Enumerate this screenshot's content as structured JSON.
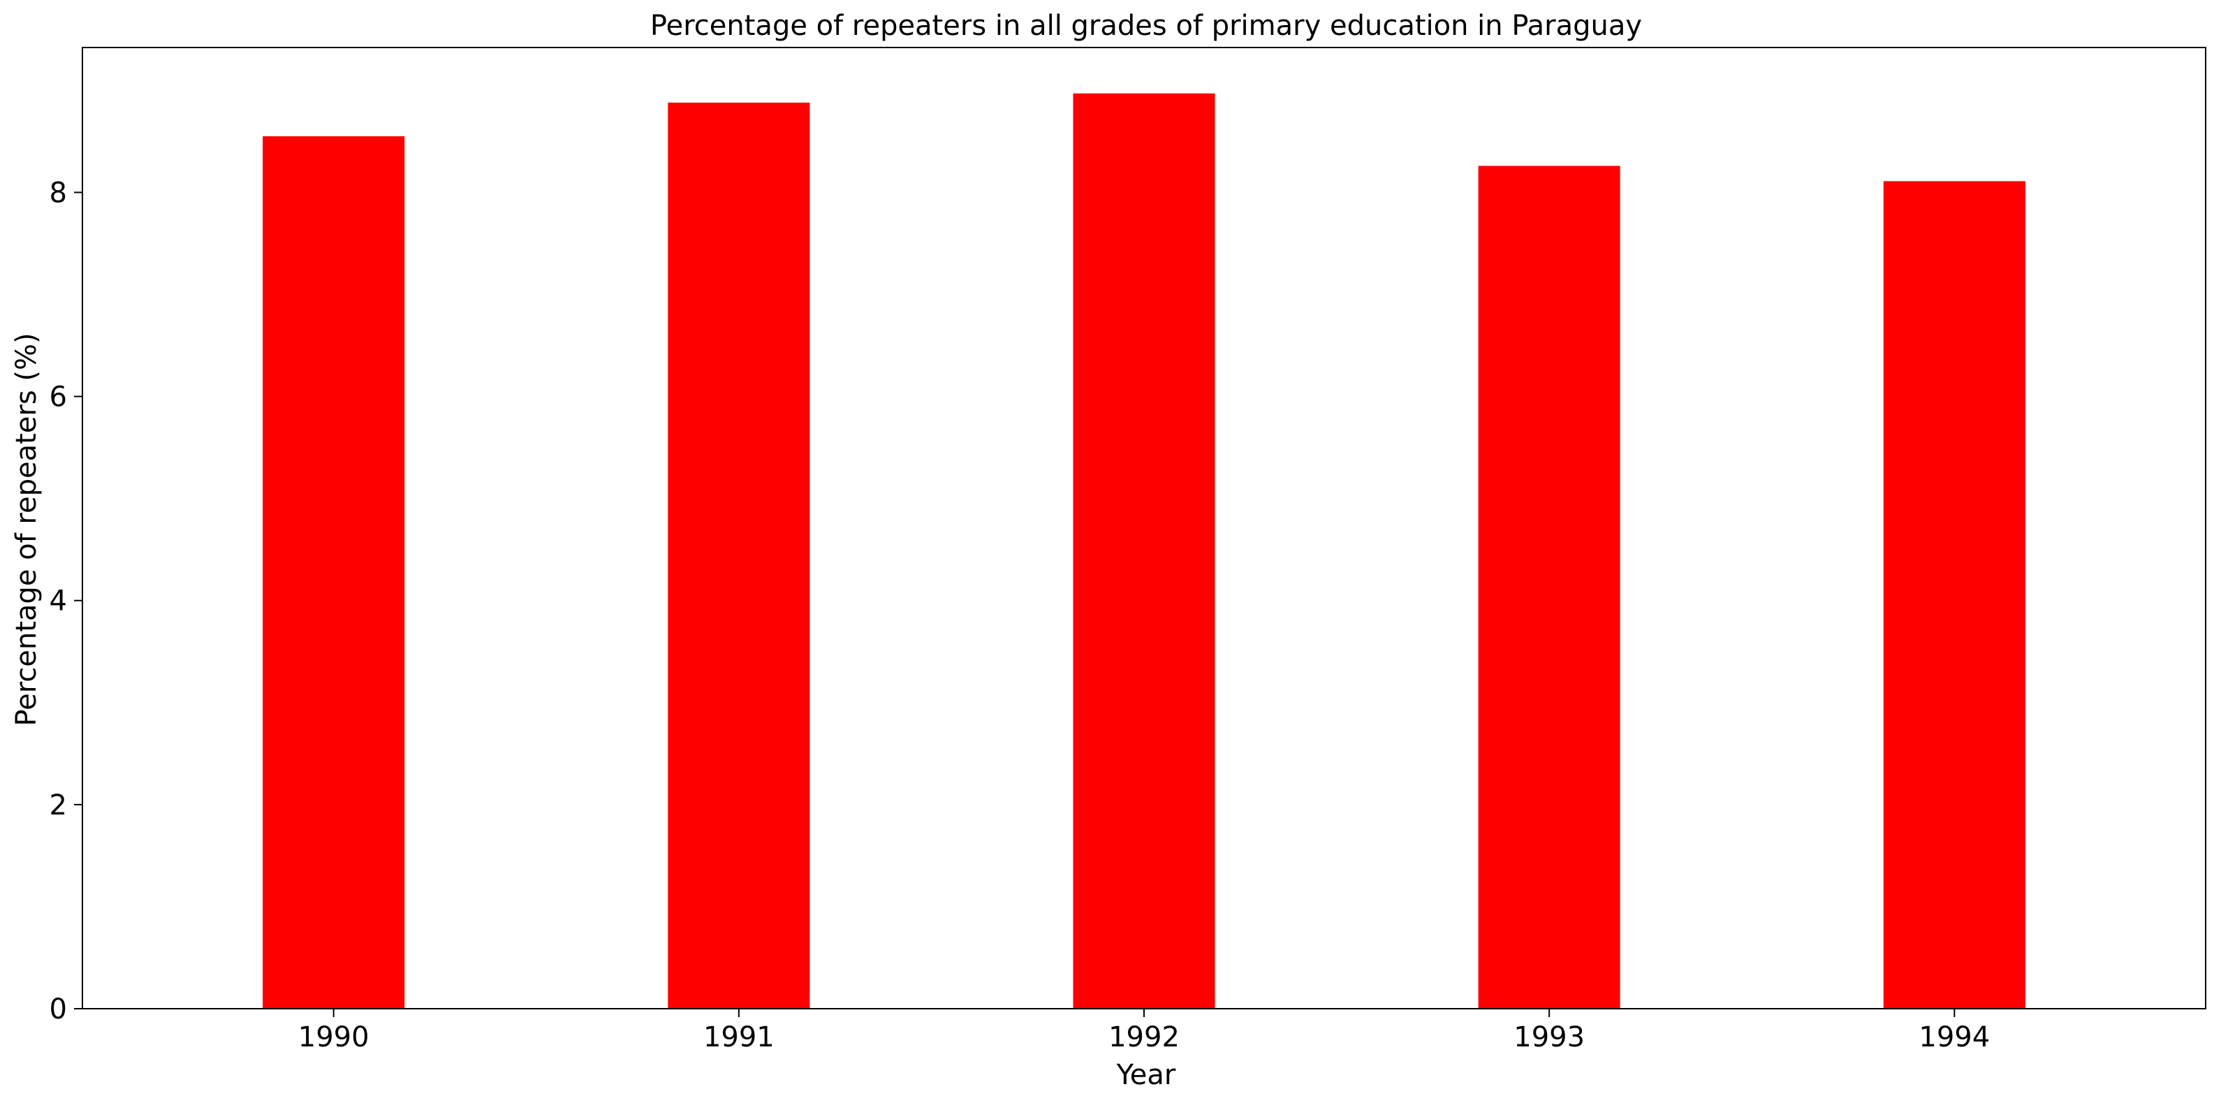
{
  "chart_data": {
    "type": "bar",
    "title": "Percentage of repeaters in all grades of primary education in Paraguay",
    "xlabel": "Year",
    "ylabel": "Percentage of repeaters (%)",
    "categories": [
      "1990",
      "1991",
      "1992",
      "1993",
      "1994"
    ],
    "series": [
      {
        "values": [
          8.55,
          8.88,
          8.97,
          8.26,
          8.11
        ]
      }
    ],
    "ylim": [
      0,
      9.42
    ],
    "yticks": [
      0,
      2,
      4,
      6,
      8
    ],
    "grid": false,
    "legend": "none",
    "bar_color": "#ff0000"
  }
}
